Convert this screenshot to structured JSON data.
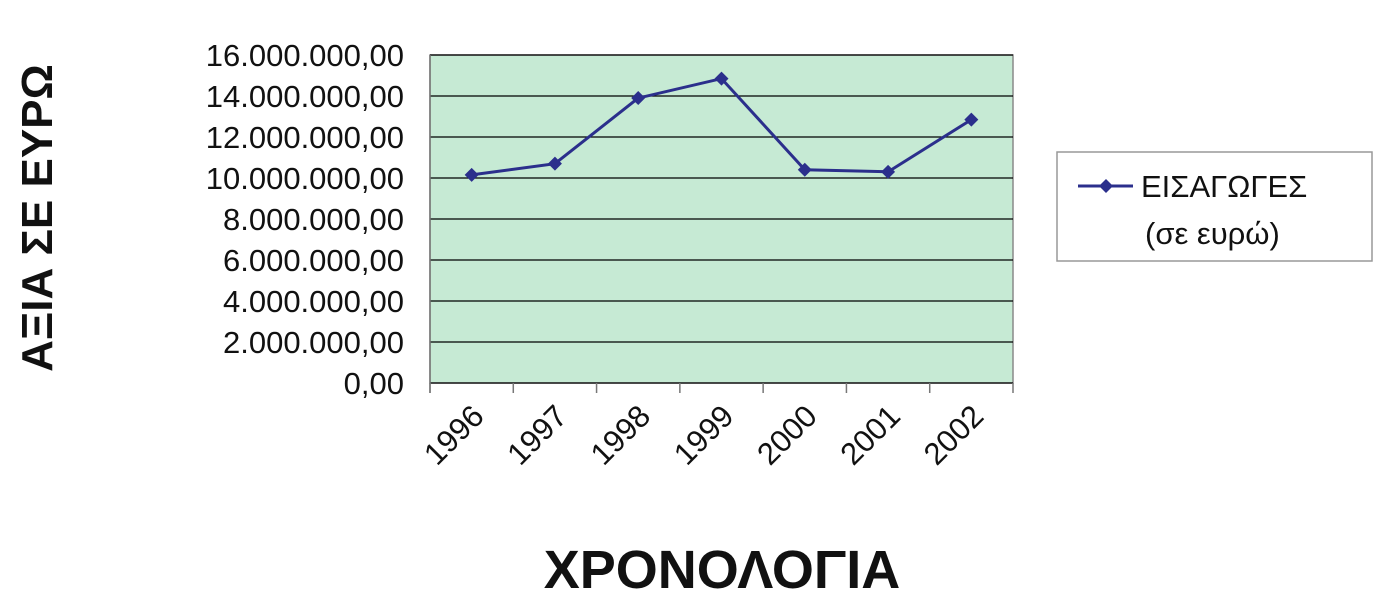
{
  "chart_data": {
    "type": "line",
    "categories": [
      "1996",
      "1997",
      "1998",
      "1999",
      "2000",
      "2001",
      "2002"
    ],
    "series": [
      {
        "name": "ΕΙΣΑΓΩΓΕΣ (σε ευρώ)",
        "legend_lines": [
          "ΕΙΣΑΓΩΓΕΣ",
          "(σε ευρώ)"
        ],
        "values": [
          10150000,
          10700000,
          13900000,
          14850000,
          10400000,
          10300000,
          12850000
        ]
      }
    ],
    "xlabel": "ΧΡΟΝΟΛΟΓΙΑ",
    "ylabel": "ΑΞΙΑ ΣΕ ΕΥΡΩ",
    "ylim": [
      0,
      16000000
    ],
    "yticks": [
      "0,00",
      "2.000.000,00",
      "4.000.000,00",
      "6.000.000,00",
      "8.000.000,00",
      "10.000.000,00",
      "12.000.000,00",
      "14.000.000,00",
      "16.000.000,00"
    ],
    "ytick_values": [
      0,
      2000000,
      4000000,
      6000000,
      8000000,
      10000000,
      12000000,
      14000000,
      16000000
    ],
    "grid": true,
    "legend_position": "right",
    "colors": {
      "plot_background": "#c6ead4",
      "series_line": "#2b2f8c",
      "gridline": "#000000"
    }
  }
}
